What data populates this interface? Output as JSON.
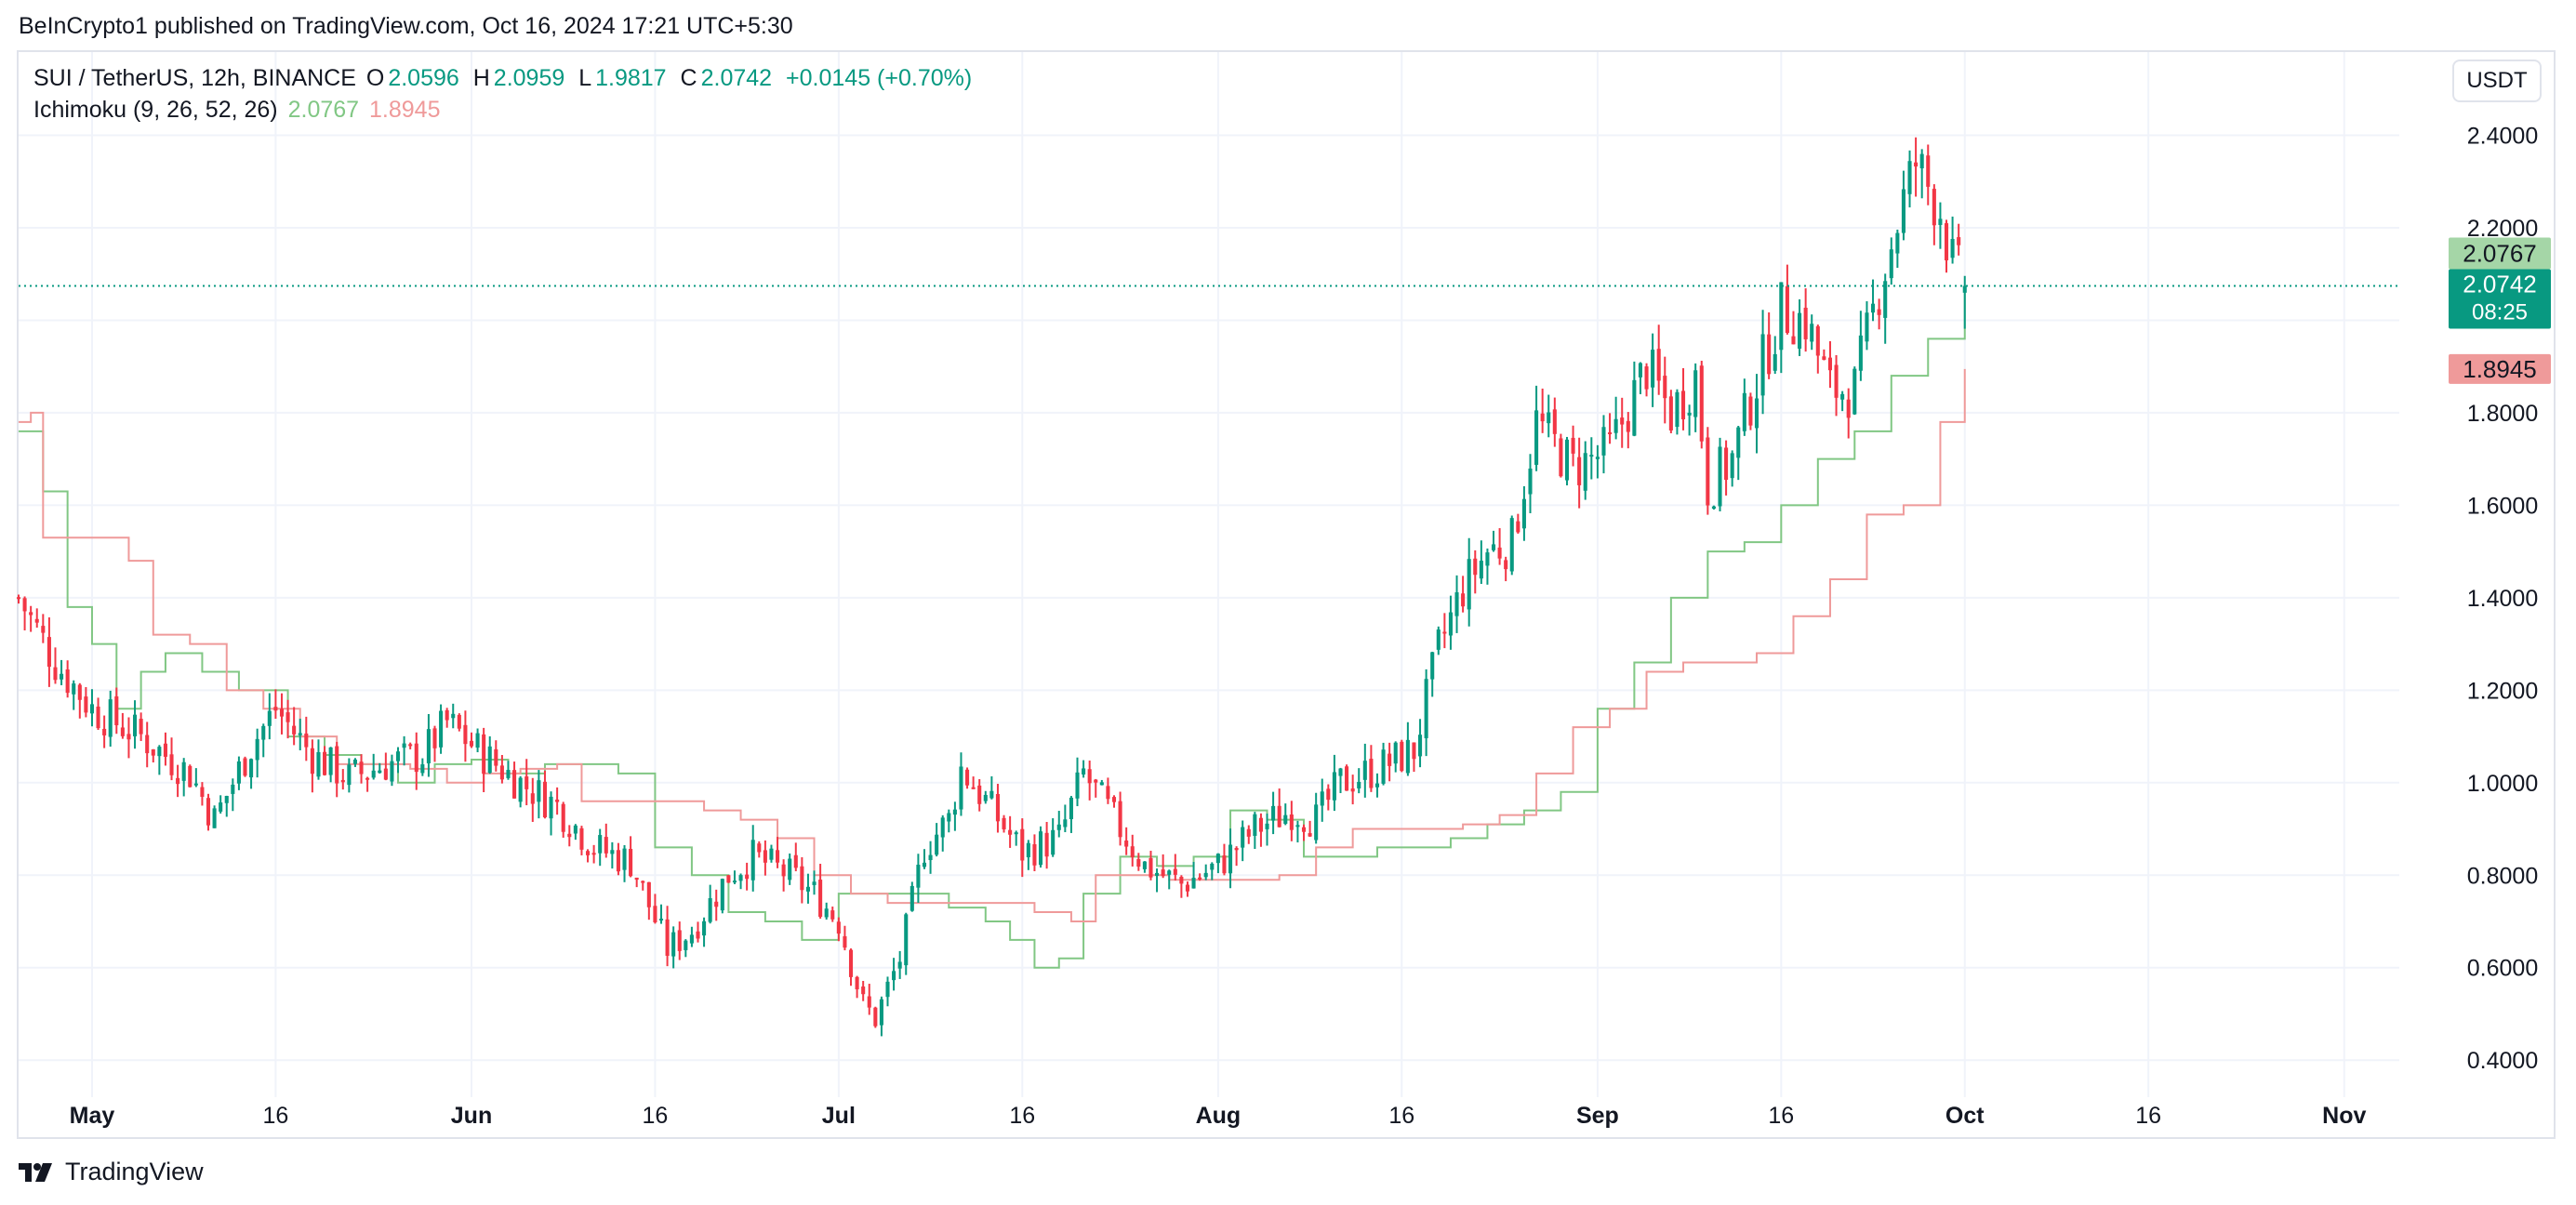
{
  "header": {
    "published": "BeInCrypto1 published on TradingView.com, Oct 16, 2024 17:21 UTC+5:30"
  },
  "legend": {
    "symbol": "SUI / TetherUS, 12h, BINANCE",
    "o_label": "O",
    "o_value": "2.0596",
    "h_label": "H",
    "h_value": "2.0959",
    "l_label": "L",
    "l_value": "1.9817",
    "c_label": "C",
    "c_value": "2.0742",
    "change": "+0.0145 (+0.70%)",
    "indicator": "Ichimoku (9, 26, 52, 26)",
    "tenkan_value": "2.0767",
    "kijun_value": "1.8945"
  },
  "currency_button": "USDT",
  "footer": {
    "brand": "TradingView"
  },
  "colors": {
    "up": "#089981",
    "down": "#f23645",
    "tenkan": "#81c784",
    "kijun": "#ef9a9a",
    "grid": "#f0f3fa"
  },
  "chart_data": {
    "type": "candlestick",
    "title": "SUI / TetherUS, 12h, BINANCE",
    "ylim": [
      0.32,
      2.58
    ],
    "y_ticks": [
      "2.4000",
      "2.2000",
      "2.0000",
      "1.8000",
      "1.6000",
      "1.4000",
      "1.2000",
      "1.0000",
      "0.8000",
      "0.6000",
      "0.4000"
    ],
    "x_ticks": [
      "May",
      "16",
      "Jun",
      "16",
      "Jul",
      "16",
      "Aug",
      "16",
      "Sep",
      "16",
      "Oct",
      "16",
      "Nov"
    ],
    "x_tick_days": [
      6,
      21,
      37,
      52,
      67,
      82,
      98,
      113,
      129,
      144,
      159,
      174,
      190
    ],
    "xlim_days": [
      0,
      194.5
    ],
    "price_labels": {
      "tenkan": "2.0767",
      "last": "2.0742",
      "countdown": "08:25",
      "kijun": "1.8945"
    },
    "last_price": 2.0742,
    "ohlc_keypoints": [
      {
        "day": 0,
        "close": 1.4
      },
      {
        "day": 3,
        "close": 1.26
      },
      {
        "day": 6,
        "close": 1.16
      },
      {
        "day": 10,
        "close": 1.1
      },
      {
        "day": 14,
        "close": 1.02
      },
      {
        "day": 16,
        "close": 0.92
      },
      {
        "day": 19,
        "close": 1.08
      },
      {
        "day": 21,
        "close": 1.16
      },
      {
        "day": 24,
        "close": 1.06
      },
      {
        "day": 27,
        "close": 1.01
      },
      {
        "day": 30,
        "close": 1.04
      },
      {
        "day": 33,
        "close": 1.06
      },
      {
        "day": 35,
        "close": 1.13
      },
      {
        "day": 38,
        "close": 1.06
      },
      {
        "day": 41,
        "close": 1.0
      },
      {
        "day": 44,
        "close": 0.95
      },
      {
        "day": 47,
        "close": 0.86
      },
      {
        "day": 50,
        "close": 0.83
      },
      {
        "day": 53,
        "close": 0.64
      },
      {
        "day": 55,
        "close": 0.68
      },
      {
        "day": 58,
        "close": 0.8
      },
      {
        "day": 60,
        "close": 0.84
      },
      {
        "day": 63,
        "close": 0.8
      },
      {
        "day": 65,
        "close": 0.76
      },
      {
        "day": 67,
        "close": 0.7
      },
      {
        "day": 69,
        "close": 0.52
      },
      {
        "day": 70,
        "close": 0.49
      },
      {
        "day": 72,
        "close": 0.62
      },
      {
        "day": 74,
        "close": 0.86
      },
      {
        "day": 76,
        "close": 0.92
      },
      {
        "day": 77,
        "close": 1.03
      },
      {
        "day": 79,
        "close": 0.96
      },
      {
        "day": 82,
        "close": 0.85
      },
      {
        "day": 85,
        "close": 0.88
      },
      {
        "day": 87,
        "close": 1.02
      },
      {
        "day": 89,
        "close": 0.94
      },
      {
        "day": 92,
        "close": 0.82
      },
      {
        "day": 95,
        "close": 0.78
      },
      {
        "day": 98,
        "close": 0.82
      },
      {
        "day": 101,
        "close": 0.9
      },
      {
        "day": 104,
        "close": 0.94
      },
      {
        "day": 106,
        "close": 0.92
      },
      {
        "day": 108,
        "close": 1.0
      },
      {
        "day": 111,
        "close": 1.03
      },
      {
        "day": 114,
        "close": 1.07
      },
      {
        "day": 116,
        "close": 1.29
      },
      {
        "day": 118,
        "close": 1.42
      },
      {
        "day": 120,
        "close": 1.5
      },
      {
        "day": 122,
        "close": 1.52
      },
      {
        "day": 124,
        "close": 1.78
      },
      {
        "day": 127,
        "close": 1.68
      },
      {
        "day": 130,
        "close": 1.72
      },
      {
        "day": 133,
        "close": 1.9
      },
      {
        "day": 135,
        "close": 1.8
      },
      {
        "day": 137,
        "close": 1.88
      },
      {
        "day": 138,
        "close": 1.64
      },
      {
        "day": 140,
        "close": 1.7
      },
      {
        "day": 142,
        "close": 1.87
      },
      {
        "day": 144,
        "close": 2.02
      },
      {
        "day": 146,
        "close": 2.0
      },
      {
        "day": 148,
        "close": 1.85
      },
      {
        "day": 150,
        "close": 1.85
      },
      {
        "day": 152,
        "close": 2.07
      },
      {
        "day": 154,
        "close": 2.26
      },
      {
        "day": 155,
        "close": 2.34
      },
      {
        "day": 157,
        "close": 2.24
      },
      {
        "day": 158,
        "close": 2.12
      },
      {
        "day": 159,
        "close": 2.0742
      }
    ],
    "series": [
      {
        "name": "Tenkan-sen (conversion line)",
        "color": "#81c784",
        "points": [
          [
            0,
            1.76
          ],
          [
            2,
            1.63
          ],
          [
            4,
            1.38
          ],
          [
            6,
            1.3
          ],
          [
            8,
            1.16
          ],
          [
            10,
            1.24
          ],
          [
            12,
            1.28
          ],
          [
            15,
            1.24
          ],
          [
            18,
            1.2
          ],
          [
            22,
            1.1
          ],
          [
            25,
            1.06
          ],
          [
            28,
            1.04
          ],
          [
            31,
            1.0
          ],
          [
            34,
            1.04
          ],
          [
            37,
            1.05
          ],
          [
            40,
            1.02
          ],
          [
            43,
            1.04
          ],
          [
            46,
            1.04
          ],
          [
            49,
            1.02
          ],
          [
            52,
            0.86
          ],
          [
            55,
            0.8
          ],
          [
            58,
            0.72
          ],
          [
            61,
            0.7
          ],
          [
            64,
            0.66
          ],
          [
            67,
            0.76
          ],
          [
            70,
            0.76
          ],
          [
            73,
            0.76
          ],
          [
            76,
            0.73
          ],
          [
            79,
            0.7
          ],
          [
            81,
            0.66
          ],
          [
            83,
            0.6
          ],
          [
            85,
            0.62
          ],
          [
            87,
            0.76
          ],
          [
            90,
            0.84
          ],
          [
            93,
            0.82
          ],
          [
            96,
            0.84
          ],
          [
            99,
            0.94
          ],
          [
            102,
            0.92
          ],
          [
            105,
            0.84
          ],
          [
            108,
            0.84
          ],
          [
            111,
            0.86
          ],
          [
            114,
            0.86
          ],
          [
            117,
            0.88
          ],
          [
            120,
            0.91
          ],
          [
            123,
            0.94
          ],
          [
            126,
            0.98
          ],
          [
            129,
            1.16
          ],
          [
            132,
            1.26
          ],
          [
            135,
            1.4
          ],
          [
            138,
            1.5
          ],
          [
            141,
            1.52
          ],
          [
            144,
            1.6
          ],
          [
            147,
            1.7
          ],
          [
            150,
            1.76
          ],
          [
            153,
            1.88
          ],
          [
            156,
            1.96
          ],
          [
            159,
            2.0767
          ]
        ]
      },
      {
        "name": "Kijun-sen (base line)",
        "color": "#ef9a9a",
        "points": [
          [
            0,
            1.78
          ],
          [
            1,
            1.8
          ],
          [
            2,
            1.53
          ],
          [
            6,
            1.53
          ],
          [
            9,
            1.48
          ],
          [
            11,
            1.32
          ],
          [
            14,
            1.3
          ],
          [
            17,
            1.2
          ],
          [
            20,
            1.16
          ],
          [
            23,
            1.1
          ],
          [
            26,
            1.04
          ],
          [
            29,
            1.04
          ],
          [
            32,
            1.03
          ],
          [
            35,
            1.0
          ],
          [
            38,
            1.02
          ],
          [
            41,
            1.03
          ],
          [
            44,
            1.04
          ],
          [
            46,
            0.96
          ],
          [
            50,
            0.96
          ],
          [
            53,
            0.96
          ],
          [
            56,
            0.94
          ],
          [
            59,
            0.92
          ],
          [
            62,
            0.88
          ],
          [
            65,
            0.8
          ],
          [
            68,
            0.76
          ],
          [
            71,
            0.74
          ],
          [
            74,
            0.74
          ],
          [
            77,
            0.74
          ],
          [
            80,
            0.74
          ],
          [
            83,
            0.72
          ],
          [
            86,
            0.7
          ],
          [
            88,
            0.8
          ],
          [
            91,
            0.8
          ],
          [
            94,
            0.79
          ],
          [
            97,
            0.79
          ],
          [
            100,
            0.79
          ],
          [
            103,
            0.8
          ],
          [
            106,
            0.86
          ],
          [
            109,
            0.9
          ],
          [
            112,
            0.9
          ],
          [
            115,
            0.9
          ],
          [
            118,
            0.91
          ],
          [
            121,
            0.93
          ],
          [
            124,
            1.02
          ],
          [
            127,
            1.12
          ],
          [
            130,
            1.16
          ],
          [
            133,
            1.24
          ],
          [
            136,
            1.26
          ],
          [
            139,
            1.26
          ],
          [
            142,
            1.28
          ],
          [
            145,
            1.36
          ],
          [
            148,
            1.44
          ],
          [
            151,
            1.58
          ],
          [
            154,
            1.6
          ],
          [
            157,
            1.78
          ],
          [
            159,
            1.8945
          ]
        ]
      }
    ]
  }
}
